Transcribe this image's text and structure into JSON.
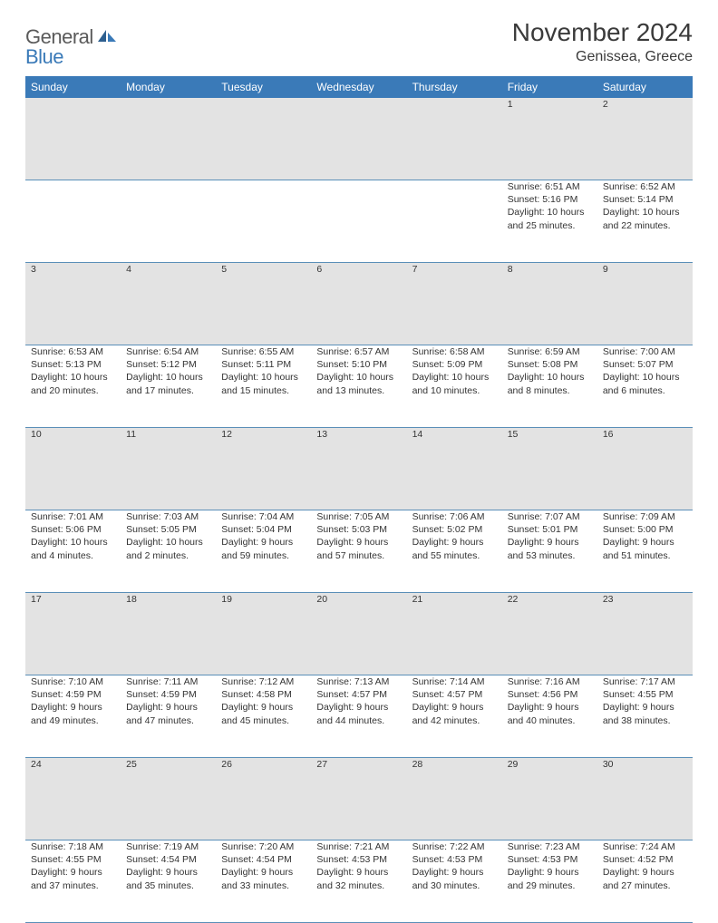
{
  "logo": {
    "part1": "General",
    "part2": "Blue"
  },
  "title": "November 2024",
  "location": "Genissea, Greece",
  "header_color": "#3a7ab8",
  "daynum_bg": "#e3e3e3",
  "row_border": "#5a8fb8",
  "weekdays": [
    "Sunday",
    "Monday",
    "Tuesday",
    "Wednesday",
    "Thursday",
    "Friday",
    "Saturday"
  ],
  "weeks": [
    {
      "nums": [
        "",
        "",
        "",
        "",
        "",
        "1",
        "2"
      ],
      "cells": [
        null,
        null,
        null,
        null,
        null,
        {
          "sr": "Sunrise: 6:51 AM",
          "ss": "Sunset: 5:16 PM",
          "dl": "Daylight: 10 hours and 25 minutes."
        },
        {
          "sr": "Sunrise: 6:52 AM",
          "ss": "Sunset: 5:14 PM",
          "dl": "Daylight: 10 hours and 22 minutes."
        }
      ]
    },
    {
      "nums": [
        "3",
        "4",
        "5",
        "6",
        "7",
        "8",
        "9"
      ],
      "cells": [
        {
          "sr": "Sunrise: 6:53 AM",
          "ss": "Sunset: 5:13 PM",
          "dl": "Daylight: 10 hours and 20 minutes."
        },
        {
          "sr": "Sunrise: 6:54 AM",
          "ss": "Sunset: 5:12 PM",
          "dl": "Daylight: 10 hours and 17 minutes."
        },
        {
          "sr": "Sunrise: 6:55 AM",
          "ss": "Sunset: 5:11 PM",
          "dl": "Daylight: 10 hours and 15 minutes."
        },
        {
          "sr": "Sunrise: 6:57 AM",
          "ss": "Sunset: 5:10 PM",
          "dl": "Daylight: 10 hours and 13 minutes."
        },
        {
          "sr": "Sunrise: 6:58 AM",
          "ss": "Sunset: 5:09 PM",
          "dl": "Daylight: 10 hours and 10 minutes."
        },
        {
          "sr": "Sunrise: 6:59 AM",
          "ss": "Sunset: 5:08 PM",
          "dl": "Daylight: 10 hours and 8 minutes."
        },
        {
          "sr": "Sunrise: 7:00 AM",
          "ss": "Sunset: 5:07 PM",
          "dl": "Daylight: 10 hours and 6 minutes."
        }
      ]
    },
    {
      "nums": [
        "10",
        "11",
        "12",
        "13",
        "14",
        "15",
        "16"
      ],
      "cells": [
        {
          "sr": "Sunrise: 7:01 AM",
          "ss": "Sunset: 5:06 PM",
          "dl": "Daylight: 10 hours and 4 minutes."
        },
        {
          "sr": "Sunrise: 7:03 AM",
          "ss": "Sunset: 5:05 PM",
          "dl": "Daylight: 10 hours and 2 minutes."
        },
        {
          "sr": "Sunrise: 7:04 AM",
          "ss": "Sunset: 5:04 PM",
          "dl": "Daylight: 9 hours and 59 minutes."
        },
        {
          "sr": "Sunrise: 7:05 AM",
          "ss": "Sunset: 5:03 PM",
          "dl": "Daylight: 9 hours and 57 minutes."
        },
        {
          "sr": "Sunrise: 7:06 AM",
          "ss": "Sunset: 5:02 PM",
          "dl": "Daylight: 9 hours and 55 minutes."
        },
        {
          "sr": "Sunrise: 7:07 AM",
          "ss": "Sunset: 5:01 PM",
          "dl": "Daylight: 9 hours and 53 minutes."
        },
        {
          "sr": "Sunrise: 7:09 AM",
          "ss": "Sunset: 5:00 PM",
          "dl": "Daylight: 9 hours and 51 minutes."
        }
      ]
    },
    {
      "nums": [
        "17",
        "18",
        "19",
        "20",
        "21",
        "22",
        "23"
      ],
      "cells": [
        {
          "sr": "Sunrise: 7:10 AM",
          "ss": "Sunset: 4:59 PM",
          "dl": "Daylight: 9 hours and 49 minutes."
        },
        {
          "sr": "Sunrise: 7:11 AM",
          "ss": "Sunset: 4:59 PM",
          "dl": "Daylight: 9 hours and 47 minutes."
        },
        {
          "sr": "Sunrise: 7:12 AM",
          "ss": "Sunset: 4:58 PM",
          "dl": "Daylight: 9 hours and 45 minutes."
        },
        {
          "sr": "Sunrise: 7:13 AM",
          "ss": "Sunset: 4:57 PM",
          "dl": "Daylight: 9 hours and 44 minutes."
        },
        {
          "sr": "Sunrise: 7:14 AM",
          "ss": "Sunset: 4:57 PM",
          "dl": "Daylight: 9 hours and 42 minutes."
        },
        {
          "sr": "Sunrise: 7:16 AM",
          "ss": "Sunset: 4:56 PM",
          "dl": "Daylight: 9 hours and 40 minutes."
        },
        {
          "sr": "Sunrise: 7:17 AM",
          "ss": "Sunset: 4:55 PM",
          "dl": "Daylight: 9 hours and 38 minutes."
        }
      ]
    },
    {
      "nums": [
        "24",
        "25",
        "26",
        "27",
        "28",
        "29",
        "30"
      ],
      "cells": [
        {
          "sr": "Sunrise: 7:18 AM",
          "ss": "Sunset: 4:55 PM",
          "dl": "Daylight: 9 hours and 37 minutes."
        },
        {
          "sr": "Sunrise: 7:19 AM",
          "ss": "Sunset: 4:54 PM",
          "dl": "Daylight: 9 hours and 35 minutes."
        },
        {
          "sr": "Sunrise: 7:20 AM",
          "ss": "Sunset: 4:54 PM",
          "dl": "Daylight: 9 hours and 33 minutes."
        },
        {
          "sr": "Sunrise: 7:21 AM",
          "ss": "Sunset: 4:53 PM",
          "dl": "Daylight: 9 hours and 32 minutes."
        },
        {
          "sr": "Sunrise: 7:22 AM",
          "ss": "Sunset: 4:53 PM",
          "dl": "Daylight: 9 hours and 30 minutes."
        },
        {
          "sr": "Sunrise: 7:23 AM",
          "ss": "Sunset: 4:53 PM",
          "dl": "Daylight: 9 hours and 29 minutes."
        },
        {
          "sr": "Sunrise: 7:24 AM",
          "ss": "Sunset: 4:52 PM",
          "dl": "Daylight: 9 hours and 27 minutes."
        }
      ]
    }
  ]
}
